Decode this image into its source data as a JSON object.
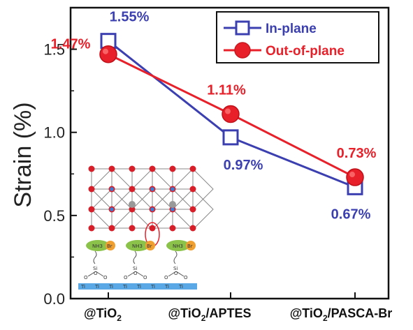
{
  "chart_data": {
    "type": "line",
    "categories": [
      "@TiO",
      "@TiO/APTES",
      "@TiO/PASCA-Br"
    ],
    "category_labels": [
      {
        "pre": "@TiO",
        "sub": "2",
        "post": ""
      },
      {
        "pre": "@TiO",
        "sub": "2",
        "post": "/APTES"
      },
      {
        "pre": "@TiO",
        "sub": "2",
        "post": "/PASCA-Br"
      }
    ],
    "series": [
      {
        "name": "In-plane",
        "values": [
          1.55,
          0.97,
          0.67
        ],
        "labels": [
          "1.55%",
          "0.97%",
          "0.67%"
        ],
        "color": "#3b3fb0",
        "marker": "square"
      },
      {
        "name": "Out-of-plane",
        "values": [
          1.47,
          1.11,
          0.73
        ],
        "labels": [
          "1.47%",
          "1.11%",
          "0.73%"
        ],
        "color": "#e8202a",
        "marker": "circle"
      }
    ],
    "ylabel": "Strain (%)",
    "ylim": [
      0.0,
      1.75
    ],
    "yticks": [
      "0.0",
      "0.5",
      "1.0",
      "1.5"
    ],
    "ytick_values": [
      0.0,
      0.5,
      1.0,
      1.5
    ],
    "legend_position": "top-right",
    "grid": false
  },
  "inset": {
    "ligand_labels": [
      "NH3",
      "Br"
    ],
    "si_label": "Si",
    "o_label": "O",
    "ti_label": "Ti"
  }
}
